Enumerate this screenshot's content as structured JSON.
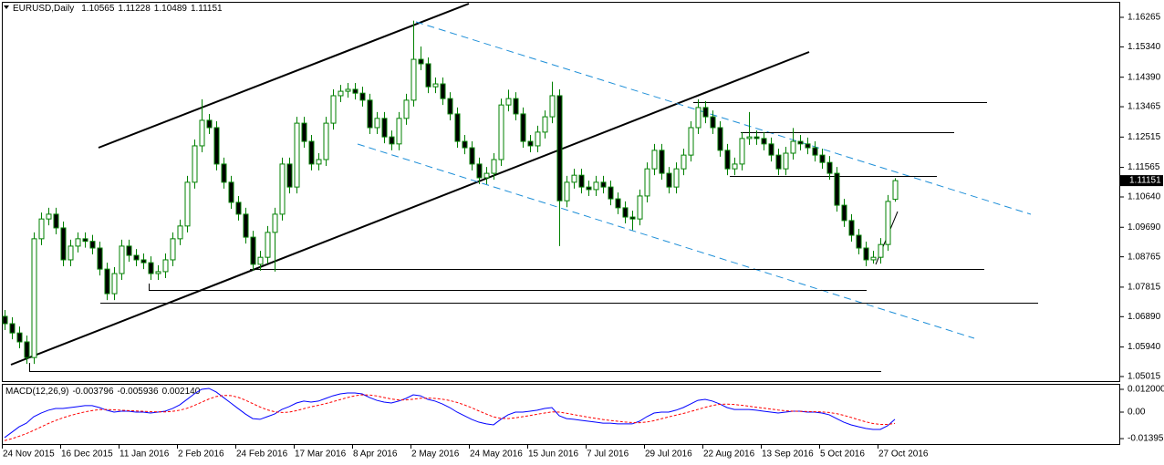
{
  "chart_data": [
    {
      "type": "candlestick",
      "title": "EURUSD,Daily",
      "categories": [
        "24 Nov 2015",
        null,
        null,
        null,
        null,
        null,
        null,
        null,
        "16 Dec 2015",
        null,
        null,
        null,
        null,
        null,
        null,
        null,
        "11 Jan 2016",
        null,
        null,
        null,
        null,
        null,
        null,
        null,
        "2 Feb 2016",
        null,
        null,
        null,
        null,
        null,
        null,
        null,
        "24 Feb 2016",
        null,
        null,
        null,
        null,
        null,
        null,
        null,
        "17 Mar 2016",
        null,
        null,
        null,
        null,
        null,
        null,
        null,
        "8 Apr 2016",
        null,
        null,
        null,
        null,
        null,
        null,
        null,
        "2 May 2016",
        null,
        null,
        null,
        null,
        null,
        null,
        null,
        "24 May 2016",
        null,
        null,
        null,
        null,
        null,
        null,
        null,
        "15 Jun 2016",
        null,
        null,
        null,
        null,
        null,
        null,
        null,
        "7 Jul 2016",
        null,
        null,
        null,
        null,
        null,
        null,
        null,
        "29 Jul 2016",
        null,
        null,
        null,
        null,
        null,
        null,
        null,
        "22 Aug 2016",
        null,
        null,
        null,
        null,
        null,
        null,
        null,
        "13 Sep 2016",
        null,
        null,
        null,
        null,
        null,
        null,
        null,
        "5 Oct 2016",
        null,
        null,
        null,
        null,
        null,
        null,
        null,
        "27 Oct 2016",
        null,
        null
      ],
      "open": [
        1.069,
        1.0667,
        1.0638,
        1.061,
        1.0561,
        1.0933,
        1.0995,
        1.101,
        1.0967,
        1.0867,
        1.091,
        1.0933,
        1.0925,
        1.0904,
        1.0838,
        1.0761,
        1.0824,
        1.091,
        1.0881,
        1.0867,
        1.0858,
        1.0824,
        1.083,
        1.0867,
        1.0933,
        1.0973,
        1.111,
        1.1224,
        1.1304,
        1.1281,
        1.1167,
        1.111,
        1.1047,
        1.101,
        1.0938,
        1.0853,
        1.0875,
        1.0953,
        1.101,
        1.1167,
        1.1095,
        1.1295,
        1.1238,
        1.1167,
        1.1181,
        1.1295,
        1.1381,
        1.1395,
        1.1401,
        1.1389,
        1.1367,
        1.1281,
        1.131,
        1.1252,
        1.123,
        1.131,
        1.1367,
        1.1495,
        1.1481,
        1.1409,
        1.1418,
        1.1372,
        1.1324,
        1.1238,
        1.1218,
        1.1167,
        1.1124,
        1.1138,
        1.1181,
        1.1352,
        1.1372,
        1.1324,
        1.1238,
        1.1224,
        1.1267,
        1.1315,
        1.1381,
        1.1052,
        1.111,
        1.1132,
        1.1095,
        1.1087,
        1.111,
        1.1095,
        1.1058,
        1.103,
        1.1001,
        1.0995,
        1.1067,
        1.1152,
        1.121,
        1.1138,
        1.1095,
        1.1152,
        1.1195,
        1.1281,
        1.1344,
        1.1315,
        1.1281,
        1.121,
        1.1152,
        1.1167,
        1.1247,
        1.1252,
        1.1247,
        1.123,
        1.1195,
        1.1152,
        1.1201,
        1.1238,
        1.123,
        1.1218,
        1.1195,
        1.1172,
        1.1138,
        1.1038,
        1.099,
        1.0944,
        1.0904,
        1.0867,
        1.0875,
        1.0915,
        1.10565
      ],
      "high": [
        1.071,
        1.0687,
        1.0658,
        1.063,
        1.0953,
        1.1015,
        1.103,
        1.103,
        1.0987,
        1.093,
        1.0953,
        1.0953,
        1.0945,
        1.0924,
        1.0858,
        1.0844,
        1.093,
        1.093,
        1.0901,
        1.0887,
        1.0878,
        1.085,
        1.0887,
        1.0953,
        1.0993,
        1.113,
        1.1244,
        1.137,
        1.1324,
        1.1301,
        1.1187,
        1.113,
        1.1067,
        1.103,
        1.0958,
        1.0895,
        1.0973,
        1.103,
        1.1187,
        1.1187,
        1.1315,
        1.1315,
        1.1258,
        1.1201,
        1.1315,
        1.1401,
        1.1415,
        1.1421,
        1.1421,
        1.1409,
        1.1387,
        1.133,
        1.133,
        1.1272,
        1.133,
        1.1387,
        1.1616,
        1.1535,
        1.1501,
        1.1438,
        1.1438,
        1.1392,
        1.1344,
        1.1258,
        1.1238,
        1.1187,
        1.1158,
        1.1201,
        1.1372,
        1.14,
        1.1392,
        1.1344,
        1.1258,
        1.1287,
        1.1335,
        1.1425,
        1.1401,
        1.113,
        1.1152,
        1.1152,
        1.1115,
        1.113,
        1.113,
        1.1115,
        1.1078,
        1.105,
        1.1021,
        1.1087,
        1.1172,
        1.123,
        1.123,
        1.1158,
        1.1172,
        1.1215,
        1.1301,
        1.137,
        1.1364,
        1.1335,
        1.1301,
        1.123,
        1.1187,
        1.1267,
        1.133,
        1.1272,
        1.1267,
        1.125,
        1.1215,
        1.1221,
        1.128,
        1.1258,
        1.125,
        1.1238,
        1.1215,
        1.1192,
        1.1158,
        1.1058,
        1.101,
        1.0964,
        1.0924,
        1.0895,
        1.0935,
        1.107,
        1.11228
      ],
      "low": [
        1.0647,
        1.0618,
        1.059,
        1.0541,
        1.0541,
        1.0913,
        1.0975,
        1.0947,
        1.0847,
        1.0847,
        1.089,
        1.0905,
        1.0884,
        1.0818,
        1.0741,
        1.0741,
        1.0804,
        1.0861,
        1.0847,
        1.0838,
        1.0804,
        1.0804,
        1.081,
        1.0847,
        1.0913,
        1.0953,
        1.109,
        1.1204,
        1.1261,
        1.1147,
        1.109,
        1.1027,
        1.099,
        1.0918,
        1.0833,
        1.0833,
        1.0855,
        1.083,
        1.099,
        1.1075,
        1.1075,
        1.1218,
        1.1147,
        1.1147,
        1.1161,
        1.1275,
        1.1361,
        1.1375,
        1.1369,
        1.1347,
        1.1261,
        1.1261,
        1.1232,
        1.121,
        1.121,
        1.129,
        1.1347,
        1.1461,
        1.1389,
        1.1389,
        1.1352,
        1.1304,
        1.1218,
        1.1198,
        1.1147,
        1.1104,
        1.1104,
        1.1118,
        1.1161,
        1.1332,
        1.1304,
        1.1218,
        1.1204,
        1.1204,
        1.1247,
        1.1295,
        1.091,
        1.1032,
        1.109,
        1.1075,
        1.1067,
        1.1067,
        1.1075,
        1.1038,
        1.101,
        1.0981,
        1.096,
        1.0975,
        1.1047,
        1.1132,
        1.1118,
        1.1075,
        1.1075,
        1.1132,
        1.1175,
        1.1261,
        1.1295,
        1.1261,
        1.119,
        1.1132,
        1.1132,
        1.1147,
        1.1227,
        1.1227,
        1.121,
        1.1175,
        1.1132,
        1.1132,
        1.1181,
        1.121,
        1.1198,
        1.1175,
        1.1152,
        1.1118,
        1.1018,
        1.097,
        1.0924,
        1.0884,
        1.0847,
        1.0855,
        1.0855,
        1.0895,
        1.10489
      ],
      "close": [
        1.0667,
        1.0638,
        1.061,
        1.0561,
        1.0933,
        1.0995,
        1.101,
        1.0967,
        1.0867,
        1.091,
        1.0933,
        1.0925,
        1.0904,
        1.0838,
        1.0761,
        1.0824,
        1.091,
        1.0881,
        1.0867,
        1.0858,
        1.0824,
        1.083,
        1.0867,
        1.0933,
        1.0973,
        1.111,
        1.1224,
        1.1304,
        1.1281,
        1.1167,
        1.111,
        1.1047,
        1.101,
        1.0938,
        1.0853,
        1.0875,
        1.0953,
        1.101,
        1.1167,
        1.1095,
        1.1295,
        1.1238,
        1.1167,
        1.1181,
        1.1295,
        1.1381,
        1.1395,
        1.1401,
        1.1389,
        1.1367,
        1.1281,
        1.131,
        1.1252,
        1.123,
        1.131,
        1.1367,
        1.1495,
        1.1481,
        1.1409,
        1.1418,
        1.1372,
        1.1324,
        1.1238,
        1.1218,
        1.1167,
        1.1124,
        1.1138,
        1.1181,
        1.1352,
        1.1372,
        1.1324,
        1.1238,
        1.1224,
        1.1267,
        1.1315,
        1.1381,
        1.1052,
        1.111,
        1.1132,
        1.1095,
        1.1087,
        1.111,
        1.1095,
        1.1058,
        1.103,
        1.1001,
        1.0995,
        1.1067,
        1.1152,
        1.121,
        1.1138,
        1.1095,
        1.1152,
        1.1195,
        1.1281,
        1.1344,
        1.1315,
        1.1281,
        1.121,
        1.1152,
        1.1167,
        1.1247,
        1.1252,
        1.1247,
        1.123,
        1.1195,
        1.1152,
        1.1201,
        1.1238,
        1.123,
        1.1218,
        1.1195,
        1.1172,
        1.1138,
        1.1038,
        1.099,
        1.0944,
        1.0904,
        1.0867,
        1.0875,
        1.0915,
        1.105,
        1.11151
      ],
      "up_color": "#ffffff",
      "down_color": "#000000",
      "edge_color": "#008000",
      "ylim": [
        1.04843,
        1.16722
      ],
      "yticks": [
        1.16265,
        {
          "value": 1.1534,
          "label": "1.15340"
        },
        {
          "value": 1.1439,
          "label": "1.14390"
        },
        1.13465,
        1.12515,
        1.11565,
        {
          "value": 1.1064,
          "label": "1.10640"
        },
        {
          "value": 1.0969,
          "label": "1.09690"
        },
        1.08765,
        1.07815,
        {
          "value": 1.0689,
          "label": "1.06890"
        },
        {
          "value": 1.0594,
          "label": "1.05940"
        },
        1.05015
      ],
      "grid": false
    },
    {
      "type": "line",
      "title": "MACD(12,26,9)",
      "series": [
        {
          "color": "#0000ff",
          "dashed": false,
          "values": [
            -0.0134,
            -0.0106,
            -0.0077,
            -0.0058,
            -0.0024,
            -0.0005,
            0.001,
            0.0019,
            0.0019,
            0.0024,
            0.0029,
            0.0034,
            0.0034,
            0.0024,
            0.001,
            0,
            0.0005,
            0.0005,
            0,
            0,
            -0.0005,
            0,
            0.0005,
            0.0019,
            0.0038,
            0.0067,
            0.0096,
            0.012,
            0.0125,
            0.0106,
            0.0077,
            0.0048,
            0.0019,
            -0.001,
            -0.0034,
            -0.0038,
            -0.0024,
            -0.001,
            0.0014,
            0.0029,
            0.0048,
            0.0058,
            0.0053,
            0.0058,
            0.0072,
            0.0086,
            0.0096,
            0.0101,
            0.0101,
            0.0096,
            0.0077,
            0.0062,
            0.0053,
            0.0048,
            0.0058,
            0.0072,
            0.0091,
            0.0086,
            0.0067,
            0.0058,
            0.0043,
            0.0024,
            0,
            -0.0019,
            -0.0038,
            -0.0053,
            -0.0062,
            -0.0067,
            -0.0038,
            -0.0014,
            0,
            0,
            0.0005,
            0.001,
            0.0019,
            0.0024,
            -0.0019,
            -0.0034,
            -0.0038,
            -0.0043,
            -0.0048,
            -0.0053,
            -0.0058,
            -0.0058,
            -0.0062,
            -0.0062,
            -0.0062,
            -0.0048,
            -0.0024,
            -0.0005,
            0,
            0,
            0.001,
            0.0024,
            0.0043,
            0.0062,
            0.0067,
            0.0058,
            0.0043,
            0.0024,
            0.0014,
            0.0014,
            0.0014,
            0.001,
            0.0005,
            0,
            -0.0005,
            0,
            0.0005,
            0.0005,
            0,
            0,
            -0.0005,
            -0.0014,
            -0.0034,
            -0.0053,
            -0.0067,
            -0.0077,
            -0.0086,
            -0.0091,
            -0.0091,
            -0.0072,
            -0.003796
          ]
        },
        {
          "color": "#ff0000",
          "dashed": true,
          "values": [
            -0.015,
            -0.014,
            -0.0127,
            -0.0113,
            -0.0096,
            -0.0078,
            -0.006,
            -0.0044,
            -0.003,
            -0.0018,
            -0.0008,
            0.0001,
            0.0008,
            0.0013,
            0.0014,
            0.0012,
            0.001,
            0.0008,
            0.0006,
            0.0004,
            0.0002,
            0.0001,
            0.0001,
            0.0004,
            0.001,
            0.002,
            0.0035,
            0.0052,
            0.0069,
            0.0082,
            0.0088,
            0.0087,
            0.0078,
            0.0063,
            0.0045,
            0.0027,
            0.0012,
            0.0002,
            -0.0002,
            0,
            0.0008,
            0.0018,
            0.0028,
            0.0036,
            0.0045,
            0.0055,
            0.0066,
            0.0077,
            0.0086,
            0.0091,
            0.009,
            0.0085,
            0.0077,
            0.0069,
            0.0064,
            0.0064,
            0.0068,
            0.0073,
            0.0074,
            0.0072,
            0.0068,
            0.0061,
            0.0051,
            0.0038,
            0.0023,
            0.0006,
            -0.001,
            -0.0025,
            -0.0033,
            -0.0034,
            -0.003,
            -0.0024,
            -0.0018,
            -0.0011,
            -0.0005,
            0.0001,
            0,
            -0.0006,
            -0.0013,
            -0.002,
            -0.0027,
            -0.0033,
            -0.0039,
            -0.0044,
            -0.0048,
            -0.0052,
            -0.0055,
            -0.0056,
            -0.0052,
            -0.0045,
            -0.0035,
            -0.0025,
            -0.0016,
            -0.0007,
            0.0003,
            0.0014,
            0.0025,
            0.0035,
            0.0041,
            0.0042,
            0.004,
            0.0036,
            0.0031,
            0.0026,
            0.0021,
            0.0016,
            0.0011,
            0.0007,
            0.0005,
            0.0004,
            0.0003,
            0.0002,
            0.0001,
            -0.0002,
            -0.0008,
            -0.0017,
            -0.0028,
            -0.004,
            -0.0051,
            -0.006,
            -0.0065,
            -0.0065,
            -0.005936
          ]
        }
      ],
      "histogram": {
        "value": 0.00214,
        "label": "0.002140"
      },
      "ylim": [
        -0.01728,
        0.01488
      ],
      "yticks": [
        {
          "value": 0.012,
          "label": "0.012000"
        },
        {
          "value": 0,
          "label": "0.00"
        },
        -0.013955
      ]
    }
  ]
}
